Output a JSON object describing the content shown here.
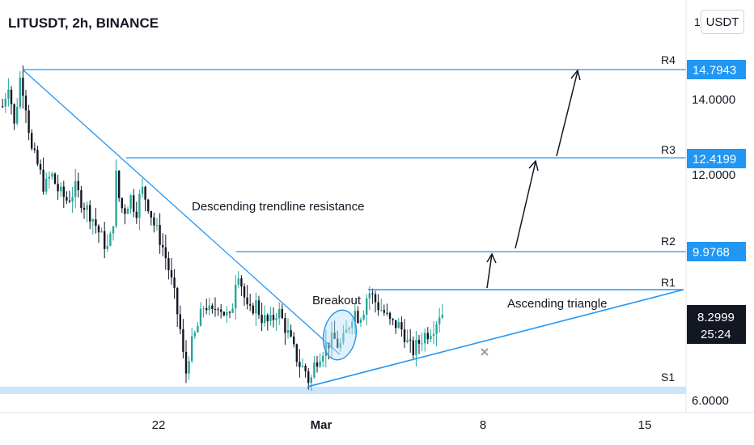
{
  "header": {
    "title": "LITUSDT, 2h, BINANCE",
    "currency_button": "USDT"
  },
  "colors": {
    "up": "#26a69a",
    "down": "#131722",
    "line": "#2196f3",
    "level_tag": "#2196f3",
    "last_price_bg": "#131722",
    "cross": "#9e9e9e"
  },
  "axes": {
    "price_ticks": [
      "14.0000",
      "12.0000",
      "6.0000"
    ],
    "price_cut_label": "1",
    "date_ticks": [
      "22",
      "Mar",
      "8",
      "15"
    ]
  },
  "levels": [
    {
      "name": "R4",
      "value": "14.7943"
    },
    {
      "name": "R3",
      "value": "12.4199"
    },
    {
      "name": "R2",
      "value": "9.9768"
    },
    {
      "name": "R1",
      "value": ""
    },
    {
      "name": "S1",
      "value": ""
    }
  ],
  "last_price": {
    "value": "8.2999",
    "countdown": "25:24"
  },
  "annotations": {
    "descending": "Descending trendline resistance",
    "breakout": "Breakout",
    "triangle": "Ascending triangle"
  },
  "chart_data": {
    "type": "candlestick",
    "title": "LITUSDT, 2h, BINANCE",
    "y_range": [
      6.0,
      15.5
    ],
    "x_range": [
      "Feb 16",
      "Mar 16"
    ],
    "levels": {
      "R4": 14.7943,
      "R3": 12.4199,
      "R2": 9.9768,
      "R1": 9.2,
      "S1": 6.3
    },
    "last": 8.2999,
    "anchors": [
      {
        "x": 0,
        "y": 13.8
      },
      {
        "x": 8,
        "y": 14.5
      },
      {
        "x": 14,
        "y": 13.2
      },
      {
        "x": 22,
        "y": 14.6
      },
      {
        "x": 28,
        "y": 14.0
      },
      {
        "x": 36,
        "y": 12.6
      },
      {
        "x": 44,
        "y": 12.2
      },
      {
        "x": 52,
        "y": 11.6
      },
      {
        "x": 60,
        "y": 12.0
      },
      {
        "x": 70,
        "y": 11.5
      },
      {
        "x": 80,
        "y": 11.3
      },
      {
        "x": 90,
        "y": 11.6
      },
      {
        "x": 100,
        "y": 11.2
      },
      {
        "x": 110,
        "y": 10.9
      },
      {
        "x": 120,
        "y": 10.4
      },
      {
        "x": 130,
        "y": 10.0
      },
      {
        "x": 136,
        "y": 10.5
      },
      {
        "x": 140,
        "y": 12.0
      },
      {
        "x": 145,
        "y": 11.2
      },
      {
        "x": 150,
        "y": 11.0
      },
      {
        "x": 158,
        "y": 11.4
      },
      {
        "x": 165,
        "y": 11.0
      },
      {
        "x": 172,
        "y": 11.6
      },
      {
        "x": 180,
        "y": 11.2
      },
      {
        "x": 188,
        "y": 10.6
      },
      {
        "x": 196,
        "y": 10.2
      },
      {
        "x": 204,
        "y": 9.6
      },
      {
        "x": 212,
        "y": 8.8
      },
      {
        "x": 220,
        "y": 7.8
      },
      {
        "x": 226,
        "y": 6.6
      },
      {
        "x": 230,
        "y": 7.2
      },
      {
        "x": 236,
        "y": 7.6
      },
      {
        "x": 242,
        "y": 8.0
      },
      {
        "x": 250,
        "y": 8.6
      },
      {
        "x": 258,
        "y": 8.2
      },
      {
        "x": 266,
        "y": 8.6
      },
      {
        "x": 274,
        "y": 8.3
      },
      {
        "x": 282,
        "y": 8.1
      },
      {
        "x": 290,
        "y": 9.6
      },
      {
        "x": 296,
        "y": 9.0
      },
      {
        "x": 304,
        "y": 8.2
      },
      {
        "x": 312,
        "y": 8.6
      },
      {
        "x": 320,
        "y": 8.2
      },
      {
        "x": 330,
        "y": 8.0
      },
      {
        "x": 340,
        "y": 8.4
      },
      {
        "x": 350,
        "y": 7.9
      },
      {
        "x": 360,
        "y": 7.3
      },
      {
        "x": 368,
        "y": 6.9
      },
      {
        "x": 374,
        "y": 6.8
      },
      {
        "x": 380,
        "y": 6.4
      },
      {
        "x": 386,
        "y": 7.0
      },
      {
        "x": 394,
        "y": 7.3
      },
      {
        "x": 402,
        "y": 7.5
      },
      {
        "x": 410,
        "y": 7.6
      },
      {
        "x": 416,
        "y": 7.4
      },
      {
        "x": 422,
        "y": 7.6
      },
      {
        "x": 428,
        "y": 8.0
      },
      {
        "x": 434,
        "y": 8.4
      },
      {
        "x": 440,
        "y": 8.2
      },
      {
        "x": 446,
        "y": 8.4
      },
      {
        "x": 452,
        "y": 8.9
      },
      {
        "x": 458,
        "y": 8.7
      },
      {
        "x": 464,
        "y": 8.5
      },
      {
        "x": 472,
        "y": 8.3
      },
      {
        "x": 480,
        "y": 8.0
      },
      {
        "x": 488,
        "y": 8.0
      },
      {
        "x": 496,
        "y": 7.8
      },
      {
        "x": 502,
        "y": 7.4
      },
      {
        "x": 508,
        "y": 7.3
      },
      {
        "x": 514,
        "y": 7.5
      },
      {
        "x": 520,
        "y": 7.7
      },
      {
        "x": 526,
        "y": 7.8
      },
      {
        "x": 534,
        "y": 8.0
      },
      {
        "x": 540,
        "y": 8.3
      },
      {
        "x": 544,
        "y": 8.3
      }
    ]
  }
}
